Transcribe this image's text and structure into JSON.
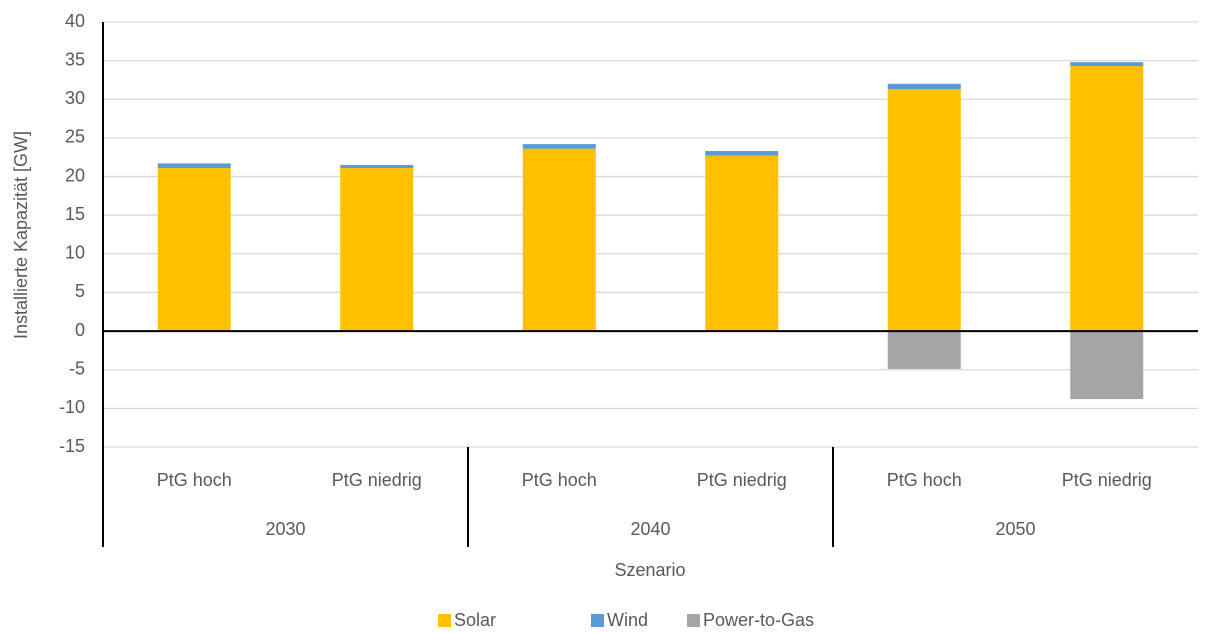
{
  "chart_data": {
    "type": "bar",
    "stacked": true,
    "x_label": "Szenario",
    "y_label": "Installierte Kapazität [GW]",
    "categories": [
      "PtG hoch",
      "PtG niedrig",
      "PtG hoch",
      "PtG niedrig",
      "PtG hoch",
      "PtG niedrig"
    ],
    "groups": [
      "2030",
      "2040",
      "2050"
    ],
    "series": [
      {
        "name": "Solar",
        "color": "#ffc000",
        "values": [
          21.1,
          21.1,
          23.6,
          22.7,
          31.3,
          34.3
        ]
      },
      {
        "name": "Wind",
        "color": "#5b9bd5",
        "values": [
          0.6,
          0.4,
          0.6,
          0.6,
          0.7,
          0.5
        ]
      },
      {
        "name": "Power-to-Gas",
        "color": "#a5a5a5",
        "values": [
          0,
          0,
          0,
          0,
          -4.9,
          -8.8
        ]
      }
    ],
    "ylim": [
      -15,
      40
    ],
    "yticks": [
      -15,
      -10,
      -5,
      0,
      5,
      10,
      15,
      20,
      25,
      30,
      35,
      40
    ],
    "grid": true,
    "legend": "bottom"
  }
}
